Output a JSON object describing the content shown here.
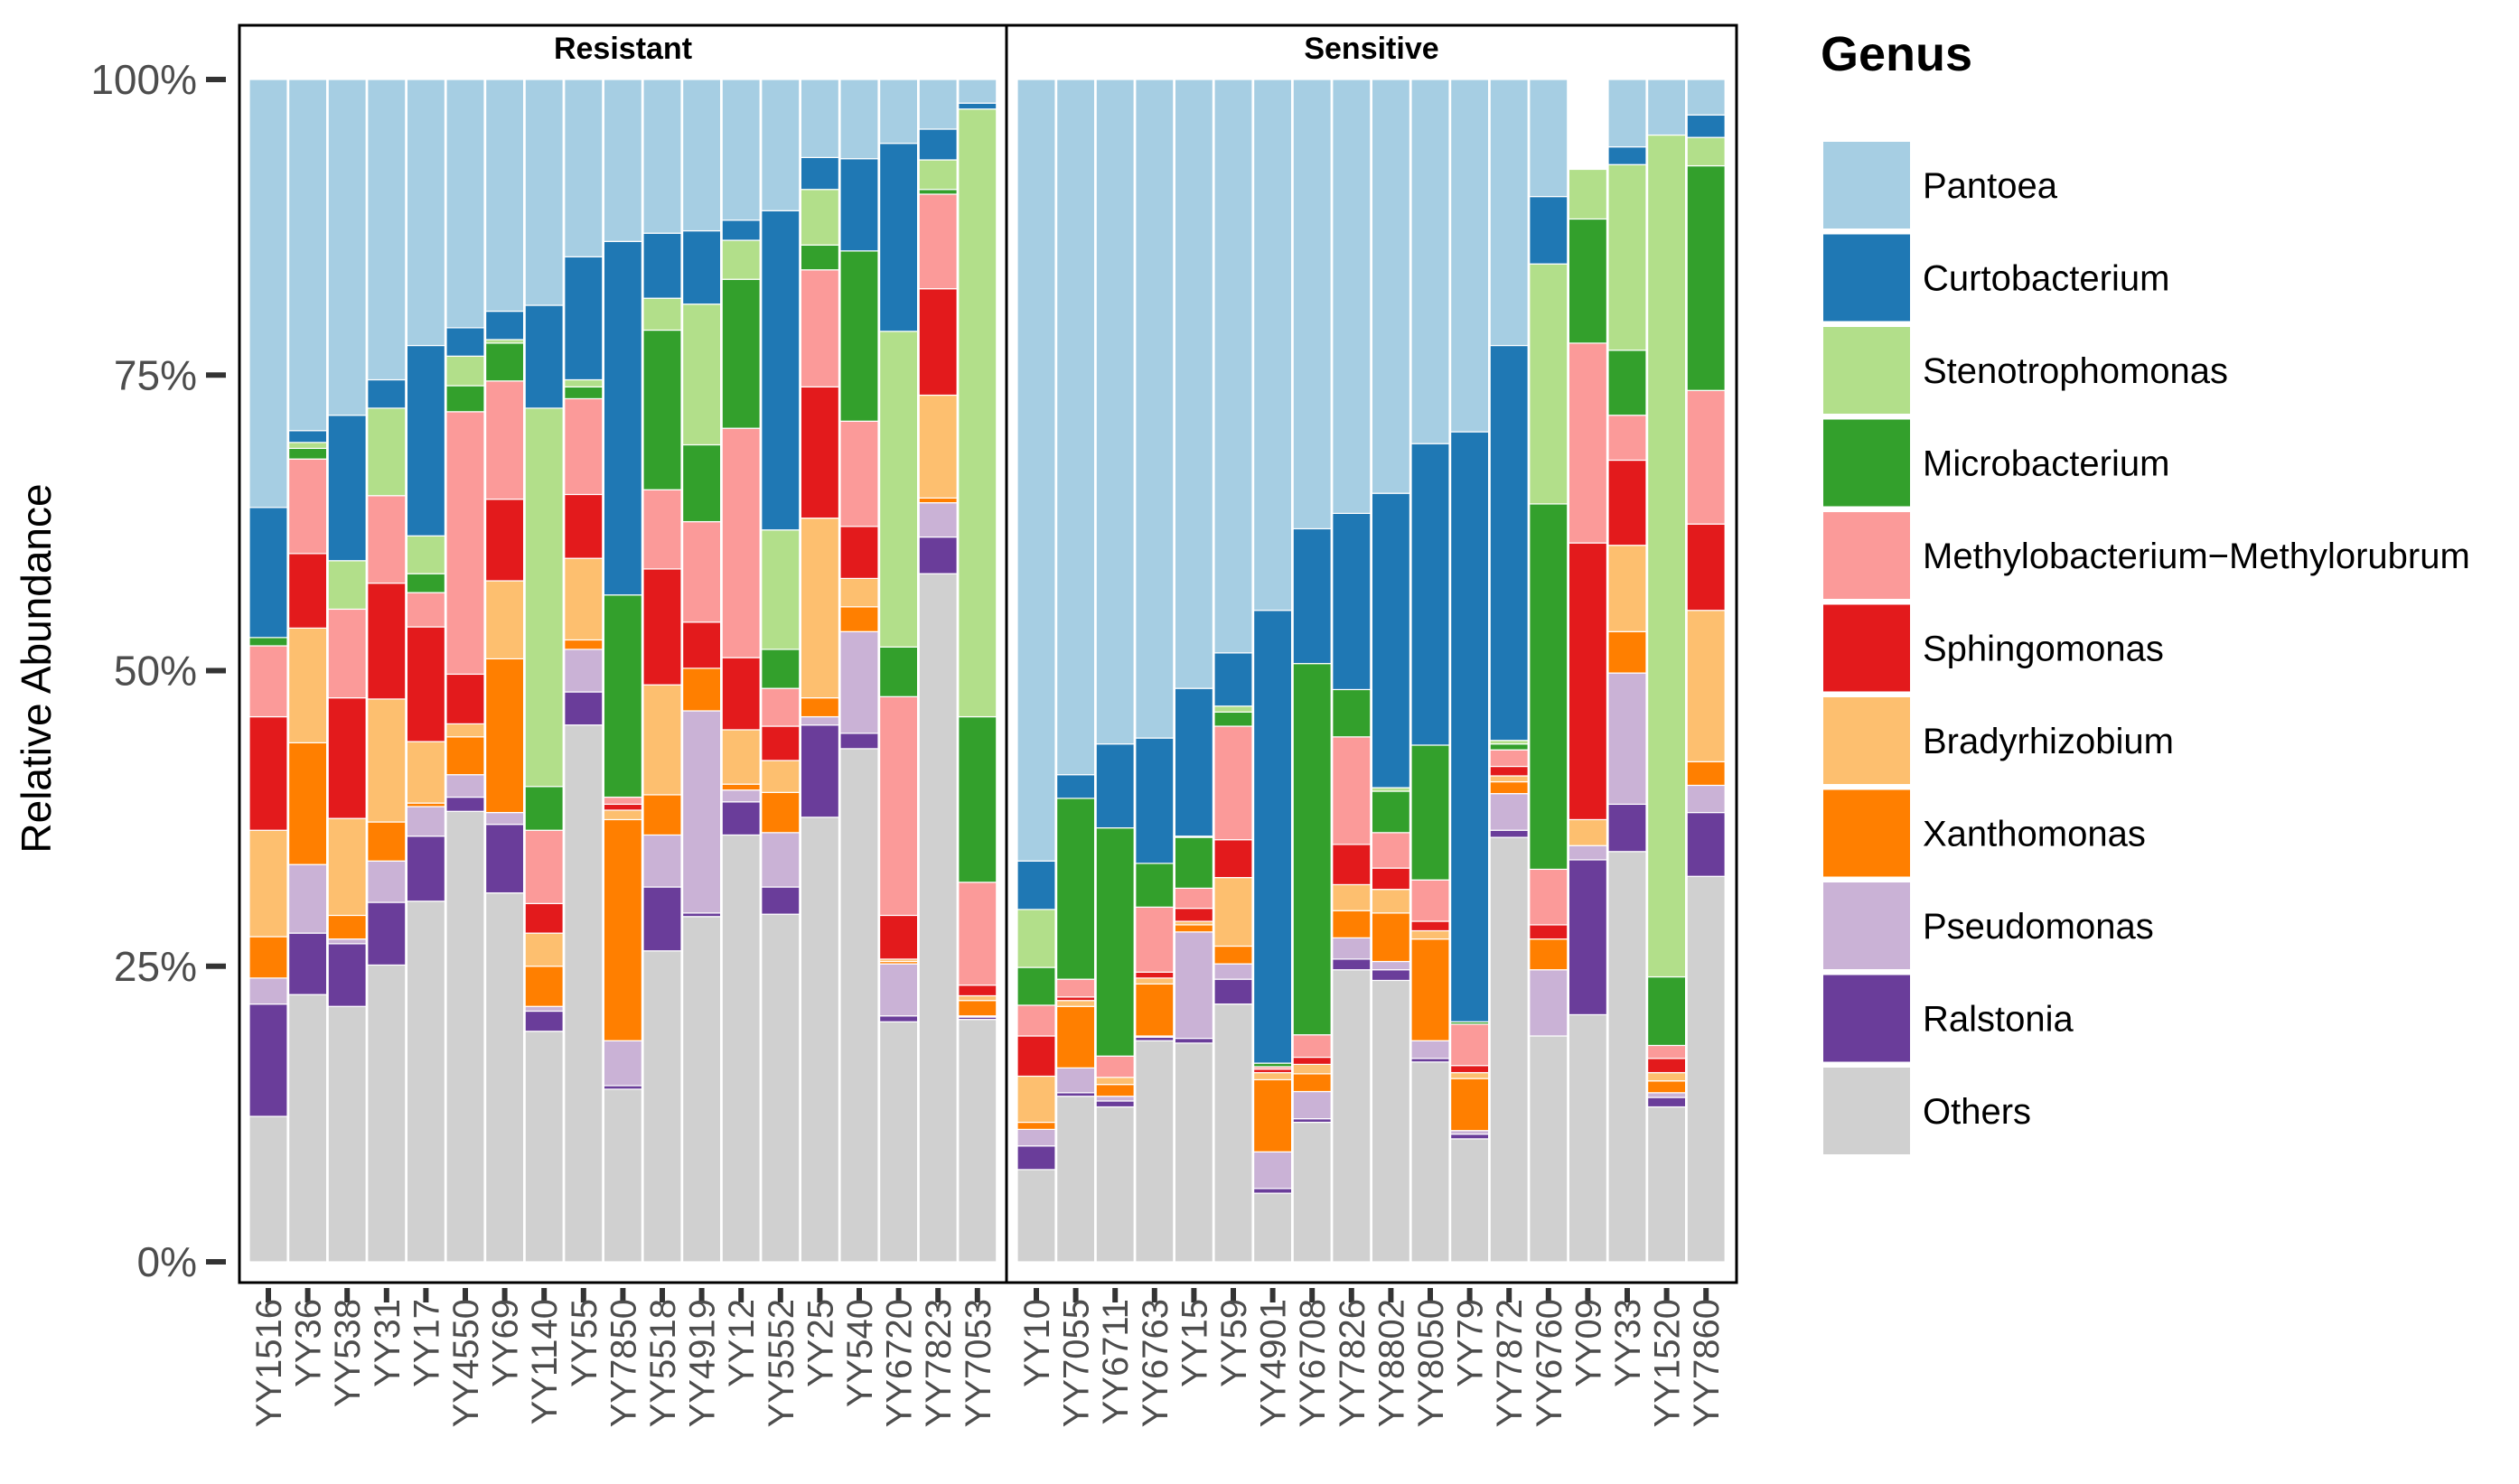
{
  "chart_data": {
    "type": "bar",
    "stacked": true,
    "ylabel": "Relative Abundance",
    "y_ticks": [
      "0%",
      "25%",
      "50%",
      "75%",
      "100%"
    ],
    "ylim": [
      0,
      100
    ],
    "legend": {
      "title": "Genus",
      "placement": "right",
      "entries": [
        {
          "name": "Pantoea",
          "color": "#a6cee3"
        },
        {
          "name": "Curtobacterium",
          "color": "#1f78b4"
        },
        {
          "name": "Stenotrophomonas",
          "color": "#b2df8a"
        },
        {
          "name": "Microbacterium",
          "color": "#33a02c"
        },
        {
          "name": "Methylobacterium−Methylorubrum",
          "color": "#fb9a99"
        },
        {
          "name": "Sphingomonas",
          "color": "#e31a1c"
        },
        {
          "name": "Bradyrhizobium",
          "color": "#fdbf6f"
        },
        {
          "name": "Xanthomonas",
          "color": "#ff7f00"
        },
        {
          "name": "Pseudomonas",
          "color": "#cab2d6"
        },
        {
          "name": "Ralstonia",
          "color": "#6a3d9a"
        },
        {
          "name": "Others",
          "color": "#d0d0d0"
        }
      ]
    },
    "stack_order": [
      "Others",
      "Ralstonia",
      "Pseudomonas",
      "Xanthomonas",
      "Bradyrhizobium",
      "Sphingomonas",
      "Methylobacterium−Methylorubrum",
      "Microbacterium",
      "Stenotrophomonas",
      "Curtobacterium",
      "Pantoea"
    ],
    "facets": [
      {
        "label": "Resistant",
        "samples": [
          {
            "name": "YY1516",
            "values": [
              12.3,
              9.5,
              2.2,
              3.5,
              9.0,
              9.6,
              6.0,
              0.7,
              0,
              11.0,
              36.2
            ]
          },
          {
            "name": "YY36",
            "values": [
              22.6,
              5.2,
              5.8,
              10.3,
              9.7,
              6.3,
              8.0,
              0.9,
              0.5,
              1.0,
              29.7
            ]
          },
          {
            "name": "YY538",
            "values": [
              21.6,
              5.3,
              0.4,
              2.0,
              8.2,
              10.2,
              7.5,
              0,
              4.1,
              12.3,
              28.4
            ]
          },
          {
            "name": "YY31",
            "values": [
              25.1,
              5.3,
              3.5,
              3.3,
              10.4,
              9.8,
              7.4,
              0,
              7.4,
              2.4,
              25.4
            ]
          },
          {
            "name": "YY17",
            "values": [
              30.5,
              5.5,
              2.5,
              0.3,
              5.2,
              9.7,
              2.9,
              1.6,
              3.2,
              16.1,
              22.5
            ]
          },
          {
            "name": "YY4550",
            "values": [
              38.1,
              1.2,
              1.9,
              3.2,
              1.1,
              4.2,
              22.2,
              2.2,
              2.5,
              2.4,
              21.0
            ]
          },
          {
            "name": "YY69",
            "values": [
              31.2,
              5.8,
              1.0,
              13.0,
              6.6,
              6.9,
              10.0,
              3.2,
              0.3,
              2.4,
              19.6
            ]
          },
          {
            "name": "YY1140",
            "values": [
              19.5,
              1.7,
              0.4,
              3.4,
              2.8,
              2.5,
              6.2,
              3.7,
              32.0,
              8.7,
              19.1
            ]
          },
          {
            "name": "YY55",
            "values": [
              45.4,
              2.8,
              3.6,
              0.8,
              6.9,
              5.4,
              8.1,
              1.0,
              0.6,
              10.4,
              15.0
            ]
          },
          {
            "name": "YY7850",
            "values": [
              14.6,
              0.3,
              3.8,
              18.7,
              0.8,
              0.5,
              0.6,
              17.1,
              0,
              29.9,
              13.7
            ]
          },
          {
            "name": "YY5518",
            "values": [
              26.3,
              5.4,
              4.4,
              3.4,
              9.3,
              9.8,
              6.7,
              13.5,
              2.7,
              5.5,
              13.0
            ]
          },
          {
            "name": "YY4919",
            "values": [
              29.2,
              0.3,
              17.1,
              3.6,
              0,
              3.9,
              8.5,
              6.5,
              11.9,
              6.2,
              12.8
            ]
          },
          {
            "name": "YY12",
            "values": [
              36.1,
              2.8,
              1.0,
              0.5,
              4.6,
              6.1,
              19.4,
              12.6,
              3.3,
              1.7,
              11.9
            ]
          },
          {
            "name": "YY5552",
            "values": [
              29.4,
              2.3,
              4.6,
              3.4,
              2.7,
              2.9,
              3.2,
              3.3,
              10.1,
              27.0,
              11.1
            ]
          },
          {
            "name": "YY25",
            "values": [
              37.6,
              7.8,
              0.7,
              1.6,
              15.2,
              11.1,
              9.9,
              2.1,
              4.7,
              2.7,
              6.6
            ]
          },
          {
            "name": "YY540",
            "values": [
              43.4,
              1.3,
              8.6,
              2.1,
              2.4,
              4.4,
              8.9,
              14.4,
              0,
              7.8,
              6.7
            ]
          },
          {
            "name": "YY6720",
            "values": [
              20.3,
              0.5,
              4.4,
              0.2,
              0.2,
              3.7,
              18.5,
              4.2,
              26.7,
              15.9,
              5.4
            ]
          },
          {
            "name": "YY7823",
            "values": [
              58.2,
              3.1,
              2.9,
              0.4,
              8.7,
              9.0,
              8.0,
              0.4,
              2.5,
              2.6,
              4.2
            ]
          },
          {
            "name": "YY7053",
            "values": [
              20.5,
              0.2,
              0.1,
              1.3,
              0.4,
              0.9,
              8.7,
              14.0,
              51.4,
              0.5,
              2.0
            ]
          }
        ]
      },
      {
        "label": "Sensitive",
        "samples": [
          {
            "name": "YY10",
            "values": [
              7.8,
              2.0,
              1.4,
              0.6,
              3.9,
              3.4,
              2.6,
              3.2,
              4.9,
              4.1,
              66.1
            ]
          },
          {
            "name": "YY7055",
            "values": [
              14.0,
              0.3,
              2.1,
              5.2,
              0.5,
              0.3,
              1.5,
              15.3,
              0,
              2.0,
              58.8
            ]
          },
          {
            "name": "YY6711",
            "values": [
              13.1,
              0.5,
              0.4,
              1.0,
              0.6,
              0,
              1.8,
              19.3,
              0,
              7.1,
              56.2
            ]
          },
          {
            "name": "YY6763",
            "values": [
              18.7,
              0.3,
              0.1,
              4.4,
              0.5,
              0.5,
              5.5,
              3.7,
              0,
              10.6,
              55.7
            ]
          },
          {
            "name": "YY15",
            "values": [
              18.5,
              0.4,
              9.0,
              0.6,
              0.3,
              1.1,
              1.7,
              4.3,
              0.1,
              12.5,
              51.5
            ]
          },
          {
            "name": "YY59",
            "values": [
              21.8,
              2.1,
              1.3,
              1.5,
              5.8,
              3.2,
              9.6,
              1.2,
              0.5,
              4.5,
              48.5
            ]
          },
          {
            "name": "YY4901",
            "values": [
              5.8,
              0.4,
              3.1,
              6.1,
              0.6,
              0.3,
              0.2,
              0.3,
              0,
              38.3,
              44.9
            ]
          },
          {
            "name": "YY6708",
            "values": [
              11.8,
              0.3,
              2.3,
              1.5,
              0.8,
              0.6,
              1.9,
              31.4,
              0,
              11.4,
              38.0
            ]
          },
          {
            "name": "YY7826",
            "values": [
              24.7,
              0.9,
              1.8,
              2.3,
              2.2,
              3.4,
              9.1,
              4.0,
              0,
              14.9,
              36.7
            ]
          },
          {
            "name": "YY8802",
            "values": [
              23.8,
              0.9,
              0.7,
              4.1,
              2.0,
              1.8,
              3.0,
              3.5,
              0.3,
              24.9,
              35.0
            ]
          },
          {
            "name": "YY8050",
            "values": [
              16.9,
              0.3,
              1.5,
              8.6,
              0.7,
              0.8,
              3.5,
              11.4,
              0,
              25.5,
              30.8
            ]
          },
          {
            "name": "YY79",
            "values": [
              10.4,
              0.4,
              0.3,
              4.4,
              0.5,
              0.6,
              3.5,
              0.2,
              0,
              49.9,
              29.8
            ]
          },
          {
            "name": "YY7872",
            "values": [
              35.9,
              0.6,
              3.1,
              1.0,
              0.5,
              0.8,
              1.4,
              0.5,
              0.3,
              33.4,
              22.5
            ]
          },
          {
            "name": "YY6760",
            "values": [
              19.1,
              0,
              5.6,
              2.6,
              0,
              1.2,
              4.7,
              30.9,
              20.3,
              5.7,
              9.9
            ]
          },
          {
            "name": "YY09",
            "values": [
              20.9,
              13.1,
              1.2,
              0,
              2.2,
              23.4,
              16.9,
              10.5,
              4.2,
              0,
              0
            ]
          },
          {
            "name": "YY33",
            "values": [
              34.7,
              4.0,
              11.1,
              3.5,
              7.3,
              7.2,
              3.8,
              5.5,
              15.7,
              1.5,
              5.7
            ]
          },
          {
            "name": "YY1520",
            "values": [
              13.1,
              0.8,
              0.4,
              1.0,
              0.7,
              1.2,
              1.1,
              5.8,
              71.2,
              0,
              4.7
            ]
          },
          {
            "name": "YY7860",
            "values": [
              32.6,
              5.4,
              2.3,
              2.0,
              12.8,
              7.3,
              11.3,
              19.0,
              2.4,
              1.9,
              3.0
            ]
          }
        ]
      }
    ]
  }
}
